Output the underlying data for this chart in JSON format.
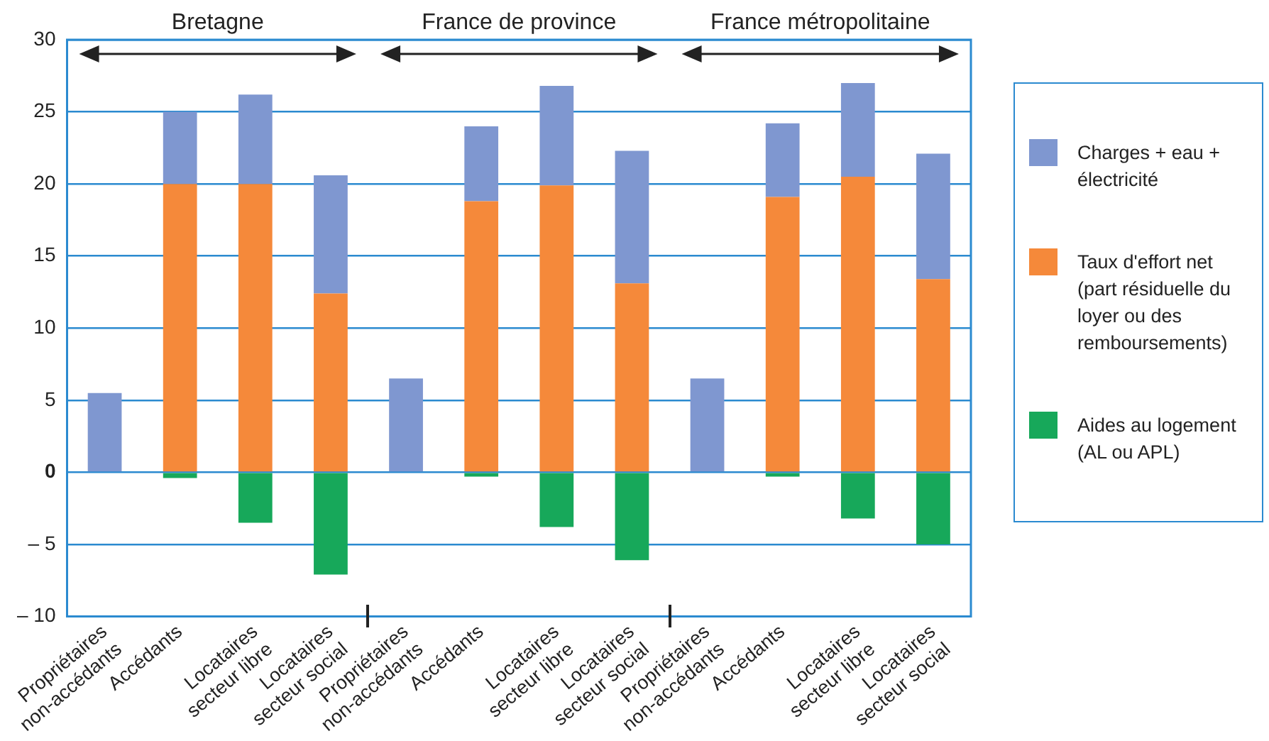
{
  "chart_data": {
    "type": "bar",
    "stacked": true,
    "categories": [
      "Propriétaires non-accédants",
      "Accédants",
      "Locataires secteur libre",
      "Locataires secteur social",
      "Propriétaires non-accédants",
      "Accédants",
      "Locataires secteur libre",
      "Locataires secteur social",
      "Propriétaires non-accédants",
      "Accédants",
      "Locataires secteur libre",
      "Locataires secteur social"
    ],
    "series": [
      {
        "name": "Taux d'effort net (part résiduelle du loyer ou des remboursements)",
        "color": "#f5893a",
        "values": [
          null,
          20,
          20,
          12.4,
          null,
          18.8,
          19.9,
          13.1,
          null,
          19.1,
          20.5,
          13.4
        ]
      },
      {
        "name": "Charges + eau + électricité",
        "color": "#7f97d0",
        "values": [
          5.5,
          5,
          6.2,
          8.2,
          6.5,
          5.2,
          6.9,
          9.2,
          6.5,
          5.1,
          6.5,
          8.7
        ]
      },
      {
        "name": "Aides au logement (AL ou APL)",
        "color": "#17a85a",
        "values": [
          null,
          -0.4,
          -3.5,
          -7.1,
          null,
          -0.3,
          -3.8,
          -6.1,
          null,
          -0.3,
          -3.2,
          -5
        ]
      }
    ],
    "ylim": [
      -10,
      30
    ],
    "yticks": [
      {
        "value": -10,
        "label": "– 10"
      },
      {
        "value": -5,
        "label": "– 5"
      },
      0,
      5,
      10,
      15,
      20,
      25,
      30
    ],
    "grid": "y",
    "legend": "right",
    "annotations": [
      "Bretagne",
      "France de province",
      "France métropolitaine"
    ]
  }
}
